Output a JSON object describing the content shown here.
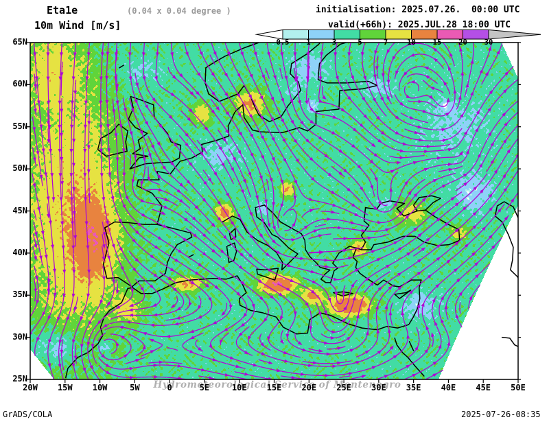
{
  "header": {
    "model": "Eta1e",
    "resolution": "(0.04 x 0.04 degree )",
    "variable": "10m Wind [m/s]",
    "init_line": "initialisation: 2025.07.26.  00:00 UTC",
    "valid_line": "valid(+66h): 2025.JUL.28 18:00 UTC"
  },
  "colorbar": {
    "labels": [
      "0.5",
      "1",
      "3",
      "5",
      "7",
      "10",
      "15",
      "20",
      "30"
    ],
    "segment_colors": [
      "#b2f0ee",
      "#8ed2f8",
      "#42dca4",
      "#60d43a",
      "#e6e242",
      "#e8833f",
      "#ea5ab4",
      "#b44fe6"
    ],
    "under_arrow_color": "#ffffff",
    "over_arrow_color": "#c4c4c4"
  },
  "map": {
    "lat_labels": [
      "65N",
      "60N",
      "55N",
      "50N",
      "45N",
      "40N",
      "35N",
      "30N",
      "25N"
    ],
    "lon_labels": [
      "20W",
      "15W",
      "10W",
      "5W",
      "0",
      "5E",
      "10E",
      "15E",
      "20E",
      "25E",
      "30E",
      "35E",
      "40E",
      "45E",
      "50E"
    ],
    "watermark": "Hydrometeorological Service of Montenegro"
  },
  "colors": {
    "streamline": "#ae08d4",
    "coast": "#000000",
    "frame": "#000000",
    "note_gray": "#9a9a9a",
    "watermark_gray": "#b0b0b0"
  },
  "footer": {
    "left": "GrADS/COLA",
    "right": "2025-07-26-08:35"
  }
}
